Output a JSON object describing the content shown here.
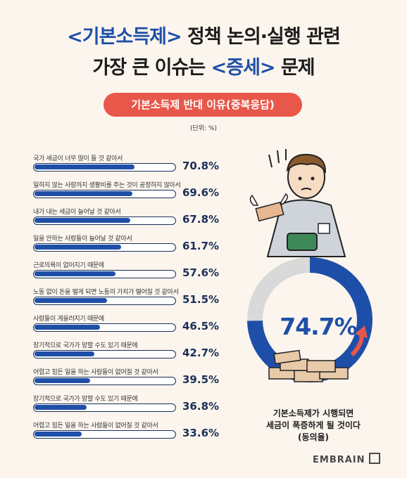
{
  "header": {
    "title_line1": [
      {
        "text": "<기본소득제>",
        "accent": true
      },
      {
        "text": " 정책 논의·실행 관련",
        "accent": false
      }
    ],
    "title_line2": [
      {
        "text": "가장 큰 이슈는 ",
        "accent": false
      },
      {
        "text": "<증세>",
        "accent": true
      },
      {
        "text": " 문제",
        "accent": false
      }
    ]
  },
  "subtitle": "기본소득제 반대 이유(중복응답)",
  "unit": "(단위: %)",
  "chart_data": {
    "type": "bar",
    "orientation": "horizontal",
    "title": "기본소득제 반대 이유(중복응답)",
    "unit": "(단위: %)",
    "categories": [
      "국가 세금이 너무 많이 들 것 같아서",
      "일하지 않는 사람까지 생활비를 주는 것이 공정하지 않아서",
      "내가 내는 세금이 늘어날 것 같아서",
      "일을 안하는 사람들이 늘어날 것 같아서",
      "근로의욕이 없어지기 때문에",
      "노동 없이 돈을 벌게 되면 노동의 가치가 떨어질 것 같아서",
      "사람들이 게을러지기 때문에",
      "장기적으로 국가가 망할 수도 있기 때문에",
      "어렵고 힘든 일을 하는 사람들이 없어질 것 같아서",
      "장기적으로 국가가 망할 수도 있기 때문에",
      "어렵고 힘든 일을 하는 사람들이 없어질 것 같아서"
    ],
    "values": [
      70.8,
      69.6,
      67.8,
      61.7,
      57.6,
      51.5,
      46.5,
      42.7,
      39.5,
      36.8,
      33.6
    ],
    "value_labels": [
      "70.8%",
      "69.6%",
      "67.8%",
      "61.7%",
      "57.6%",
      "51.5%",
      "46.5%",
      "42.7%",
      "39.5%",
      "36.8%",
      "33.6%"
    ],
    "xlim": [
      0,
      100
    ],
    "bar_color": "#1e4fa8"
  },
  "donut": {
    "value": 74.7,
    "label": "74.7%",
    "color": "#1e4fa8",
    "rest_color": "#d9d9d9"
  },
  "caption": [
    "기본소득제가 시행되면",
    "세금이 폭증하게 될 것이다",
    "(동의율)"
  ],
  "logo": "EMBRAIN"
}
